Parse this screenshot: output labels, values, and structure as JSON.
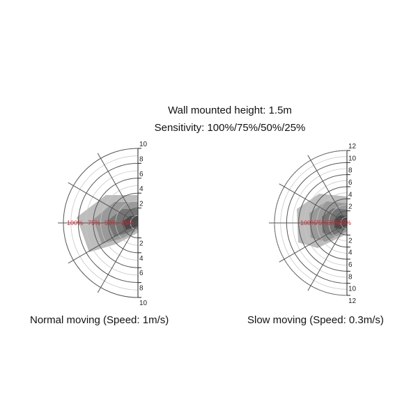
{
  "header": {
    "height_line": "Wall mounted height: 1.5m",
    "sensitivity_line": "Sensitivity: 100%/75%/50%/25%"
  },
  "diagrams": [
    {
      "caption": "Normal moving (Speed: 1m/s)",
      "max_range": 10,
      "tick_labels": [
        "10",
        "8",
        "6",
        "4",
        "2",
        "2",
        "4",
        "6",
        "8",
        "10"
      ],
      "sensitivity_labels": [
        "100%",
        "75%",
        "50%",
        "25%"
      ]
    },
    {
      "caption": "Slow moving (Speed: 0.3m/s)",
      "max_range": 12,
      "tick_labels": [
        "12",
        "10",
        "8",
        "6",
        "4",
        "2",
        "2",
        "4",
        "6",
        "8",
        "10",
        "12"
      ],
      "sensitivity_labels": [
        "100%",
        "75%",
        "50%",
        "25%"
      ]
    }
  ],
  "colors": {
    "zone_100": "#bdbdbd",
    "zone_75": "#9a9a9a",
    "zone_50": "#767676",
    "zone_25": "#4a4a4a",
    "grid": "#555555",
    "label_red": "#d9232e"
  }
}
